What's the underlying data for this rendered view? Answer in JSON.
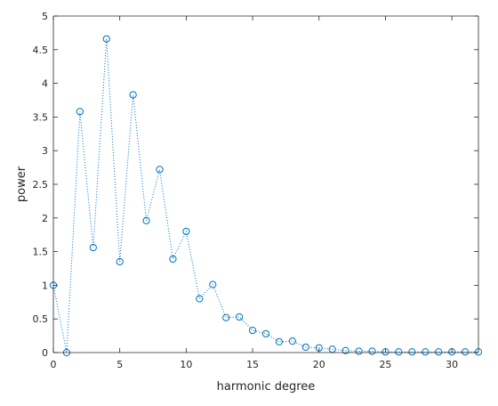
{
  "chart_data": {
    "type": "scatter",
    "title": "",
    "xlabel": "harmonic degree",
    "ylabel": "power",
    "xlim": [
      0,
      32
    ],
    "ylim": [
      0,
      5
    ],
    "x_ticks": [
      0,
      5,
      10,
      15,
      20,
      25,
      30
    ],
    "y_ticks": [
      0,
      0.5,
      1,
      1.5,
      2,
      2.5,
      3,
      3.5,
      4,
      4.5,
      5
    ],
    "x_tick_labels": [
      "0",
      "5",
      "10",
      "15",
      "20",
      "25",
      "30"
    ],
    "y_tick_labels": [
      "0",
      "0.5",
      "1",
      "1.5",
      "2",
      "2.5",
      "3",
      "3.5",
      "4",
      "4.5",
      "5"
    ],
    "grid": false,
    "marker": "open-circle",
    "line_style": "dotted",
    "color": "#0072BD",
    "series": [
      {
        "x": [
          0,
          1,
          2,
          3,
          4,
          5,
          6,
          7,
          8,
          9,
          10,
          11,
          12,
          13,
          14,
          15,
          16,
          17,
          18,
          19,
          20,
          21,
          22,
          23,
          24,
          25,
          26,
          27,
          28,
          29,
          30,
          31,
          32
        ],
        "values": [
          1.0,
          0.0,
          3.58,
          1.56,
          4.66,
          1.35,
          3.83,
          1.96,
          2.72,
          1.39,
          1.8,
          0.8,
          1.01,
          0.52,
          0.53,
          0.33,
          0.28,
          0.16,
          0.17,
          0.08,
          0.07,
          0.05,
          0.03,
          0.02,
          0.02,
          0.01,
          0.01,
          0.01,
          0.01,
          0.01,
          0.01,
          0.01,
          0.01
        ]
      }
    ]
  }
}
